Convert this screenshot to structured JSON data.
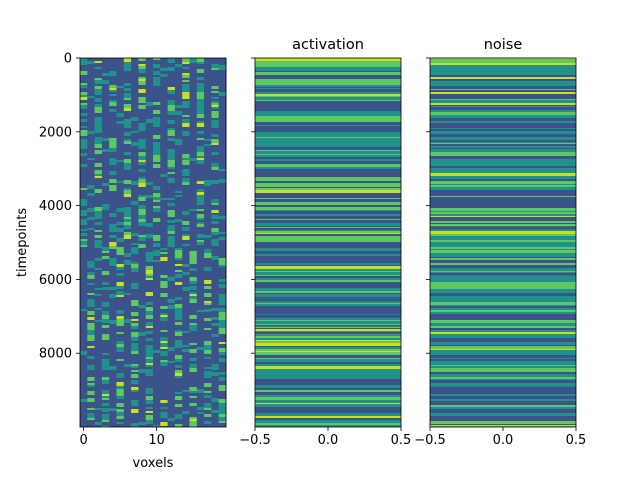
{
  "figure": {
    "colormap": [
      "#440154",
      "#3b528b",
      "#21918c",
      "#5ec962",
      "#fde725"
    ],
    "dominant_colors": {
      "dark": "#3b528b",
      "mid": "#21918c",
      "bright": "#5ec962",
      "highlight": "#c8e020"
    }
  },
  "chart_data": [
    {
      "type": "heatmap",
      "title": "",
      "xlabel": "voxels",
      "ylabel": "timepoints",
      "xlim": [
        -0.5,
        19.5
      ],
      "ylim": [
        9999.5,
        -0.5
      ],
      "n_columns": 20,
      "n_rows": 10000,
      "x_ticks": [
        0,
        10
      ],
      "x_ticklabels": [
        "0",
        "10"
      ],
      "y_ticks": [
        0,
        2000,
        4000,
        6000,
        8000
      ],
      "y_ticklabels": [
        "0",
        "2000",
        "4000",
        "6000",
        "8000"
      ],
      "notes": "Alternating column pattern: even voxels mostly dark, odd voxels horizontally striped; pattern shifts near timepoint 5100."
    },
    {
      "type": "heatmap",
      "title": "activation",
      "xlabel": "",
      "ylabel": "",
      "xlim": [
        -0.5,
        0.5
      ],
      "ylim": [
        9999.5,
        -0.5
      ],
      "n_columns": 1,
      "n_rows": 10000,
      "x_ticks": [
        -0.5,
        0.0,
        0.5
      ],
      "x_ticklabels": [
        "−0.5",
        "0.0",
        "0.5"
      ],
      "y_ticks": [
        0,
        2000,
        4000,
        6000,
        8000
      ],
      "y_ticklabels": [],
      "dark_bands_at": [
        2450,
        6550,
        7000,
        7450,
        9500
      ]
    },
    {
      "type": "heatmap",
      "title": "noise",
      "xlabel": "",
      "ylabel": "",
      "xlim": [
        -0.5,
        0.5
      ],
      "ylim": [
        9999.5,
        -0.5
      ],
      "n_columns": 1,
      "n_rows": 10000,
      "x_ticks": [
        -0.5,
        0.0,
        0.5
      ],
      "x_ticklabels": [
        "−0.5",
        "0.0",
        "0.5"
      ],
      "y_ticks": [
        0,
        2000,
        4000,
        6000,
        8000
      ],
      "y_ticklabels": [],
      "dark_bands_at": [
        1050,
        4600,
        5850,
        8950
      ]
    }
  ]
}
